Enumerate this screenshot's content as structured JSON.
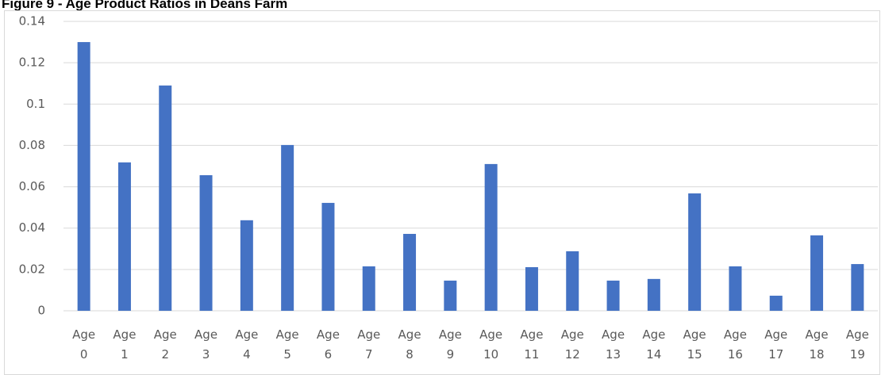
{
  "chart_data": {
    "type": "bar",
    "title": "Figure 9 - Age Product Ratios in Deans Farm",
    "categories": [
      "Age 0",
      "Age 1",
      "Age 2",
      "Age 3",
      "Age 4",
      "Age 5",
      "Age 6",
      "Age 7",
      "Age 8",
      "Age 9",
      "Age 10",
      "Age 11",
      "Age 12",
      "Age 13",
      "Age 14",
      "Age 15",
      "Age 16",
      "Age 17",
      "Age 18",
      "Age 19"
    ],
    "values": [
      0.13,
      0.0718,
      0.109,
      0.0656,
      0.0438,
      0.0802,
      0.0522,
      0.0215,
      0.0372,
      0.0146,
      0.071,
      0.0211,
      0.0288,
      0.0146,
      0.0154,
      0.0568,
      0.0215,
      0.0073,
      0.0365,
      0.0226
    ],
    "color": "#4472c4",
    "ylim": [
      0,
      0.14
    ],
    "yticks": [
      0,
      0.02,
      0.04,
      0.06,
      0.08,
      0.1,
      0.12,
      0.14
    ],
    "grid": true
  }
}
